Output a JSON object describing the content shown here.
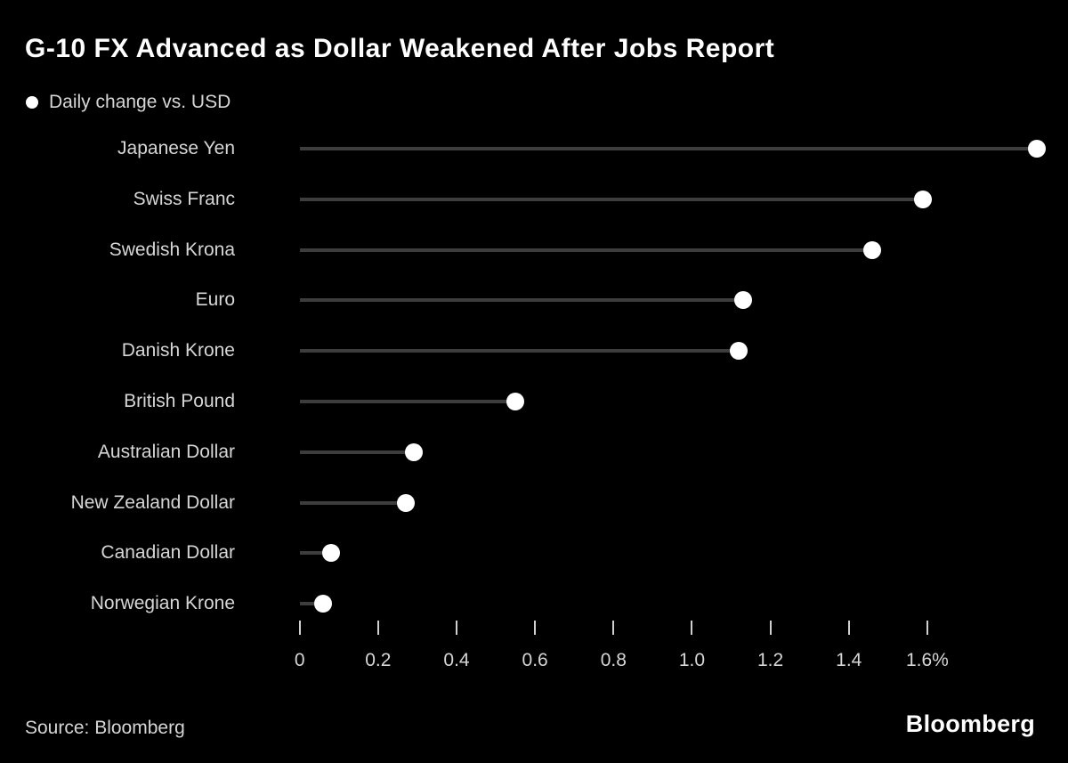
{
  "header": {
    "title": "G-10 FX Advanced as Dollar Weakened After Jobs Report",
    "legend_label": "Daily change vs. USD"
  },
  "chart_data": {
    "type": "bar",
    "variant": "lollipop",
    "orientation": "horizontal",
    "title": "G-10 FX Advanced as Dollar Weakened After Jobs Report",
    "legend": [
      "Daily change vs. USD"
    ],
    "legend_position": "top-left",
    "categories": [
      "Japanese Yen",
      "Swiss Franc",
      "Swedish Krona",
      "Euro",
      "Danish Krone",
      "British Pound",
      "Australian Dollar",
      "New Zealand Dollar",
      "Canadian Dollar",
      "Norwegian Krone"
    ],
    "values": [
      1.88,
      1.59,
      1.46,
      1.13,
      1.12,
      0.55,
      0.29,
      0.27,
      0.08,
      0.06
    ],
    "unit": "%",
    "xlabel": "",
    "ylabel": "",
    "xlim": [
      0,
      1.92
    ],
    "xticks": [
      0,
      0.2,
      0.4,
      0.6,
      0.8,
      1.0,
      1.2,
      1.4,
      1.6
    ],
    "xtick_labels": [
      "0",
      "0.2",
      "0.4",
      "0.6",
      "0.8",
      "1.0",
      "1.2",
      "1.4",
      "1.6%"
    ],
    "grid": false,
    "colors": {
      "background": "#000000",
      "dot": "#ffffff",
      "stem": "#3d3d3d",
      "tick": "#cfcfcf",
      "text": "#d6d6d6",
      "title": "#ffffff"
    }
  },
  "footer": {
    "source": "Source: Bloomberg",
    "brand": "Bloomberg"
  }
}
